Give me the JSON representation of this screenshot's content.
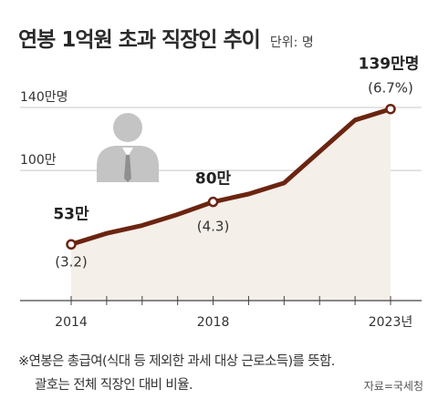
{
  "header": {
    "title": "연봉 1억원 초과 직장인 추이",
    "unit": "단위: 명"
  },
  "chart_data": {
    "type": "area",
    "title": "연봉 1억원 초과 직장인 추이",
    "unit": "단위: 명",
    "x": [
      2014,
      2015,
      2016,
      2017,
      2018,
      2019,
      2020,
      2021,
      2022,
      2023
    ],
    "values": [
      53,
      60,
      65,
      72,
      80,
      85,
      92,
      112,
      132,
      139
    ],
    "x_ticks": [
      {
        "x": 2014,
        "label": "2014"
      },
      {
        "x": 2018,
        "label": "2018"
      },
      {
        "x": 2023,
        "label": "2023년"
      }
    ],
    "y_ticks": [
      {
        "y": 100,
        "label": "100만"
      },
      {
        "y": 140,
        "label": "140만명"
      }
    ],
    "ylim": [
      30,
      140
    ],
    "annotations": [
      {
        "x": 2014,
        "y": 53,
        "value_label": "53만",
        "pct_label": "(3.2)"
      },
      {
        "x": 2018,
        "y": 80,
        "value_label": "80만",
        "pct_label": "(4.3)"
      },
      {
        "x": 2023,
        "y": 139,
        "value_label": "139만명",
        "pct_label": "(6.7%)"
      }
    ],
    "grid": true,
    "colors": {
      "line": "#6b2410",
      "fill": "#f5efe9",
      "marker_fill": "#ffffff",
      "grid": "#c8c8c8",
      "icon": "#c4c4c4"
    }
  },
  "footnote": {
    "line1": "※연봉은 총급여(식대 등 제외한 과세 대상 근로소득)를 뜻함.",
    "line2": "괄호는 전체 직장인 대비 비율."
  },
  "source": "자료=국세청"
}
